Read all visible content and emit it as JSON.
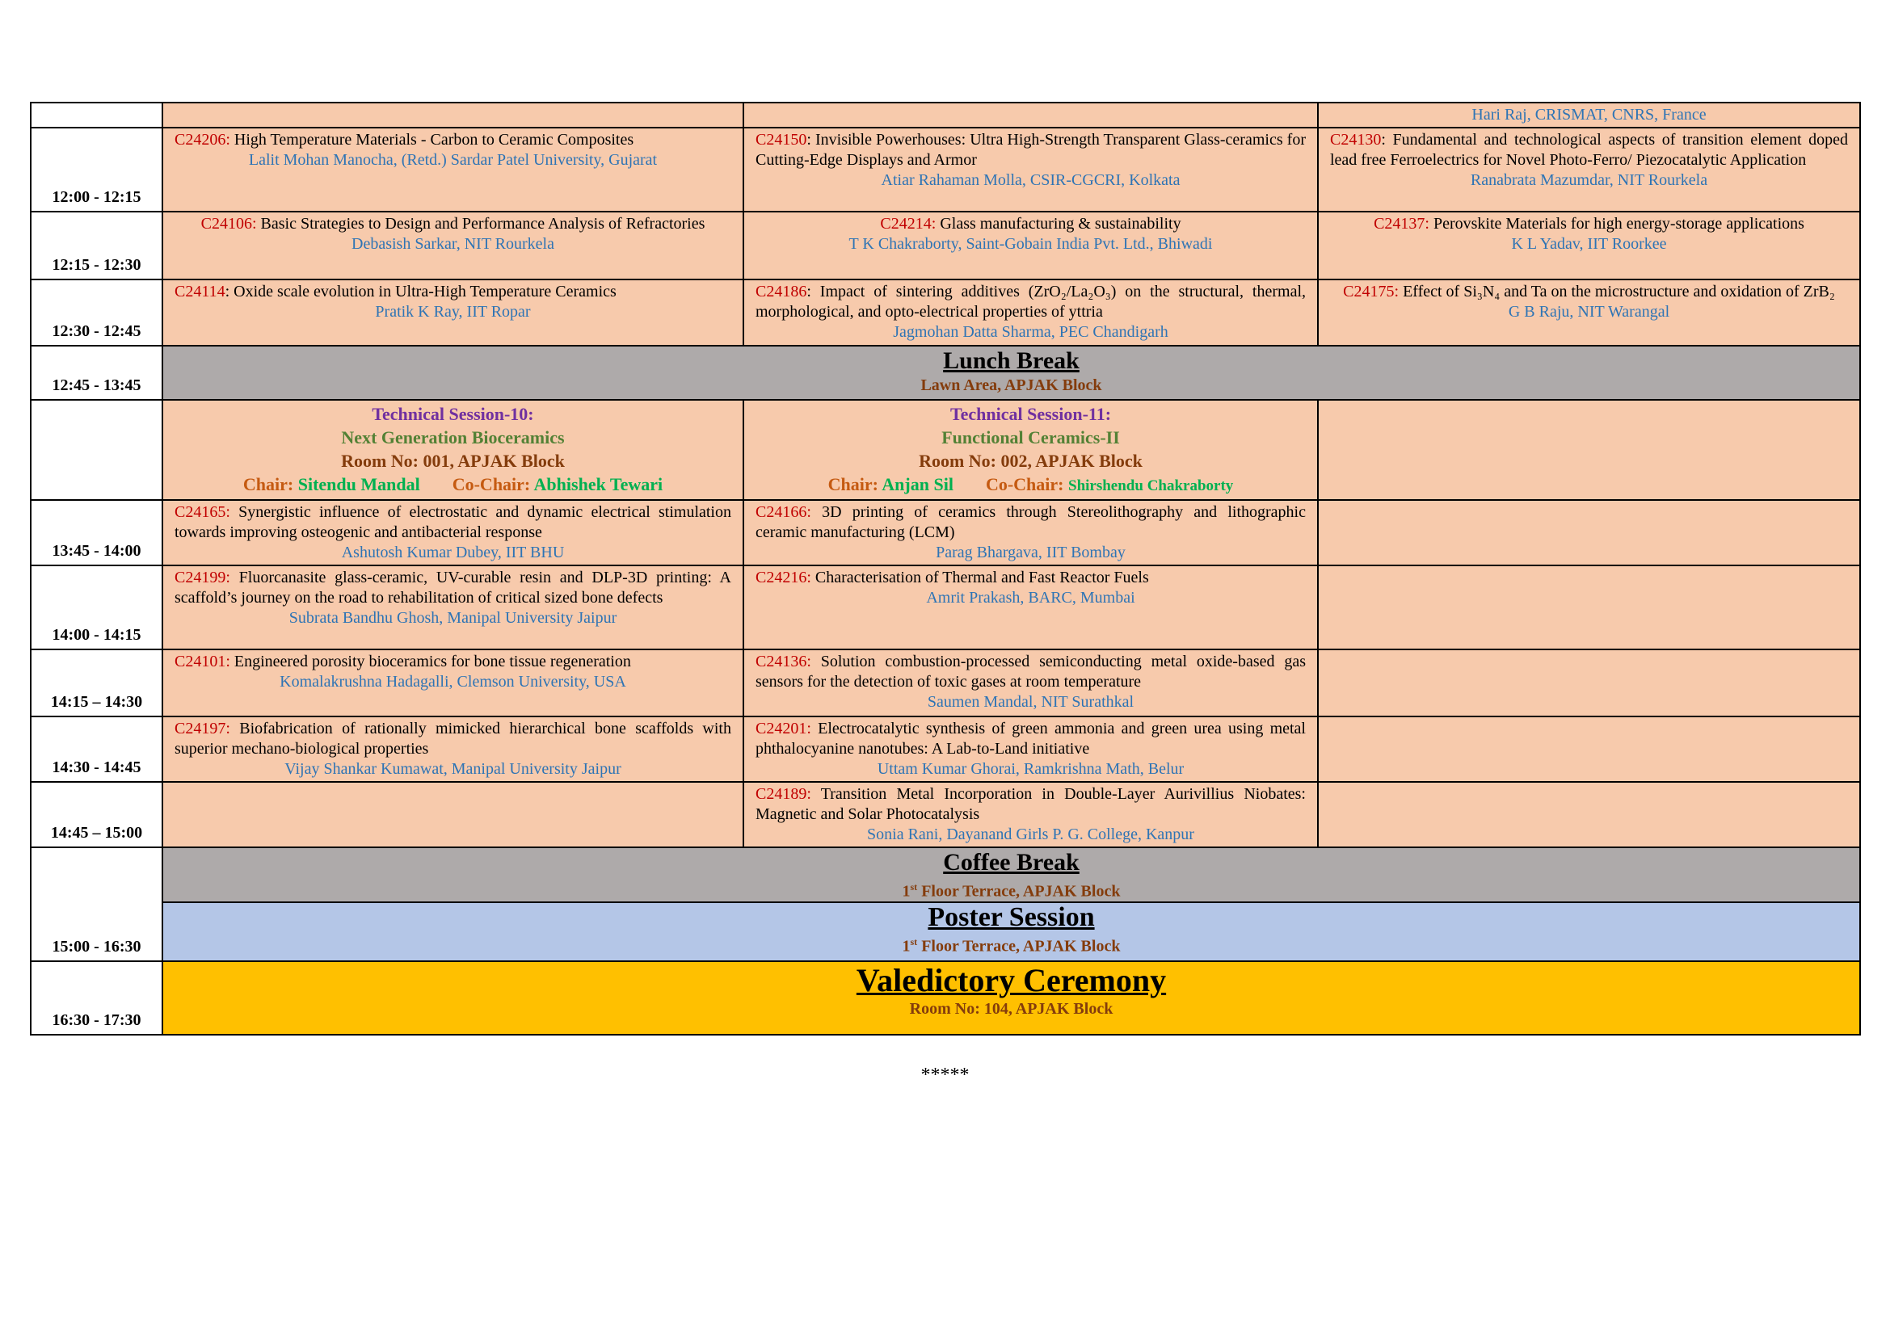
{
  "colors": {
    "talk_bg": "#f7caac",
    "break_bg": "#aeaaaa",
    "poster_bg": "#b4c6e7",
    "valedictory_bg": "#ffc000",
    "code": "#c00000",
    "author": "#2e74b5",
    "venue": "#843c0c",
    "session_name": "#7030a0",
    "session_topic": "#538135",
    "chair_label": "#c55a11",
    "chair_name": "#00b050"
  },
  "rows": [
    {
      "time": "",
      "cells": [
        {},
        {},
        {
          "author": "Hari Raj, CRISMAT, CNRS, France"
        }
      ]
    },
    {
      "time": "12:00 - 12:15",
      "cells": [
        {
          "code": "C24206:",
          "title": " High Temperature Materials - Carbon to Ceramic Composites",
          "author": "Lalit Mohan Manocha, (Retd.) Sardar Patel University, Gujarat"
        },
        {
          "code": "C24150",
          "title": ":  Invisible  Powerhouses:  Ultra  High-Strength  Transparent Glass-ceramics for Cutting-Edge Displays and Armor",
          "author": "Atiar Rahaman Molla, CSIR-CGCRI, Kolkata"
        },
        {
          "code": "C24130",
          "title": ":  Fundamental  and  technological  aspects  of  transition element  doped  lead  free  Ferroelectrics  for  Novel  Photo-Ferro/ Piezocatalytic Application",
          "author": "Ranabrata Mazumdar, NIT Rourkela"
        }
      ]
    },
    {
      "time": "12:15 - 12:30",
      "cells": [
        {
          "code": "C24106:",
          "title": " Basic Strategies to Design and Performance Analysis of Refractories",
          "author": "Debasish Sarkar, NIT Rourkela"
        },
        {
          "code": "C24214:",
          "title": " Glass manufacturing & sustainability",
          "author": "T K Chakraborty, Saint-Gobain India Pvt. Ltd., Bhiwadi"
        },
        {
          "code": "C24137:",
          "title": " Perovskite Materials for high energy-storage applications",
          "author": "K L Yadav, IIT Roorkee"
        }
      ]
    },
    {
      "time": "12:30 - 12:45",
      "cells": [
        {
          "code": "C24114",
          "title": ":  Oxide scale evolution in Ultra-High Temperature Ceramics",
          "author": "Pratik K Ray, IIT Ropar"
        },
        {
          "code": "C24186",
          "title": ": Impact of sintering additives (ZrO₂/La₂O₃) on the structural, thermal, morphological, and opto-electrical properties of yttria",
          "author": "Jagmohan Datta Sharma, PEC Chandigarh"
        },
        {
          "code": "C24175:",
          "title": " Effect of Si₃N₄ and Ta on the microstructure and oxidation of ZrB₂",
          "author": "G B Raju, NIT Warangal"
        }
      ]
    },
    {
      "time": "12:45 - 13:45",
      "band": {
        "kind": "lunch",
        "title": "Lunch Break",
        "venue": "Lawn Area, APJAK Block"
      }
    },
    {
      "time": "",
      "sessions": [
        {
          "name": "Technical Session-10:",
          "topic": "Next Generation Bioceramics",
          "room": "Room No: 001, APJAK Block",
          "chair_label": "Chair: ",
          "chair": "Sitendu Mandal",
          "cochair_label": "Co-Chair: ",
          "cochair": "Abhishek Tewari"
        },
        {
          "name": "Technical Session-11:",
          "topic": "Functional Ceramics-II",
          "room": "Room No: 002,  APJAK Block",
          "chair_label": "Chair: ",
          "chair": "Anjan Sil",
          "cochair_label": "Co-Chair:  ",
          "cochair": "Shirshendu Chakraborty"
        },
        {}
      ]
    },
    {
      "time": "13:45 - 14:00",
      "cells": [
        {
          "code": "C24165:",
          "title": " Synergistic influence of electrostatic and dynamic electrical stimulation towards improving osteogenic and antibacterial response",
          "author": "Ashutosh Kumar Dubey, IIT BHU"
        },
        {
          "code": "C24166:",
          "title": "  3D printing of ceramics through Stereolithography and lithographic ceramic manufacturing (LCM)",
          "author": "Parag Bhargava, IIT Bombay"
        },
        {}
      ]
    },
    {
      "time": "14:00 - 14:15",
      "cells": [
        {
          "code": "C24199:",
          "title": "  Fluorcanasite glass-ceramic, UV-curable resin and DLP-3D printing: A scaffold’s journey on the road to rehabilitation of critical sized bone defects",
          "author": "Subrata Bandhu Ghosh, Manipal University Jaipur"
        },
        {
          "code": "C24216:",
          "title": " Characterisation of Thermal and Fast Reactor Fuels",
          "author": "Amrit Prakash, BARC, Mumbai"
        },
        {}
      ]
    },
    {
      "time": "14:15 – 14:30",
      "cells": [
        {
          "code": "C24101:",
          "title": " Engineered porosity bioceramics for bone tissue regeneration",
          "author": "Komalakrushna Hadagalli, Clemson University, USA"
        },
        {
          "code": "C24136:",
          "title": " Solution combustion-processed semiconducting metal oxide-based gas sensors for the detection of toxic gases at room temperature",
          "author": "Saumen Mandal, NIT Surathkal"
        },
        {}
      ]
    },
    {
      "time": "14:30 - 14:45",
      "cells": [
        {
          "code": "C24197:",
          "title": "   Biofabrication of rationally mimicked hierarchical bone scaffolds with superior mechano-biological properties",
          "author": "Vijay Shankar Kumawat, Manipal University Jaipur"
        },
        {
          "code": "C24201:",
          "title": " Electrocatalytic synthesis of green ammonia and green urea using metal phthalocyanine nanotubes: A Lab-to-Land initiative",
          "author": "Uttam Kumar Ghorai, Ramkrishna Math, Belur"
        },
        {}
      ]
    },
    {
      "time": "14:45 – 15:00",
      "cells": [
        {},
        {
          "code": "C24189:",
          "title": " Transition Metal Incorporation in Double-Layer Aurivillius Niobates: Magnetic and Solar Photocatalysis",
          "author": "Sonia Rani, Dayanand Girls P. G. College, Kanpur"
        },
        {}
      ]
    },
    {
      "time": "15:00 - 16:30",
      "band": {
        "kind": "coffee",
        "title": "Coffee Break",
        "venue_num": "1",
        "venue_sup": "st",
        "venue_rest": " Floor Terrace, APJAK Block"
      }
    },
    {
      "band": {
        "kind": "poster",
        "title": "Poster Session",
        "venue_num": "1",
        "venue_sup": "st",
        "venue_rest": " Floor Terrace, APJAK Block"
      }
    },
    {
      "time": "16:30 - 17:30",
      "band": {
        "kind": "valedictory",
        "title": "Valedictory Ceremony",
        "venue": "Room No: 104,  APJAK Block"
      }
    }
  ],
  "footer": "*****"
}
